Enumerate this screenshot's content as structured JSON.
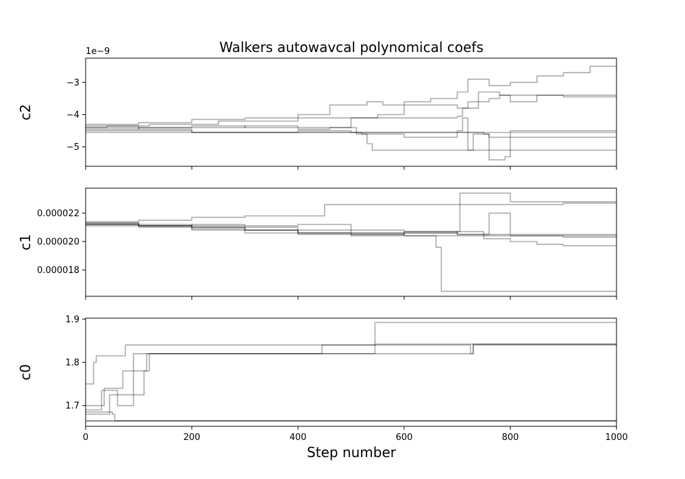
{
  "title": "Walkers autowavcal polynomical coefs",
  "xlabel": "Step number",
  "line_color": "#000000",
  "line_opacity": 0.33,
  "chart_data": [
    {
      "type": "line",
      "panel": "c2",
      "ylabel": "c2",
      "offset_label": "1e−9",
      "xlim": [
        0,
        1000
      ],
      "ylim": [
        -5.6e-09,
        -2.25e-09
      ],
      "xticks": [
        0,
        200,
        400,
        600,
        800,
        1000
      ],
      "yticks": [
        -5e-09,
        -4e-09,
        -3e-09
      ],
      "ytick_labels": [
        "−5",
        "−4",
        "−3"
      ],
      "show_xtick_labels": false,
      "grid": false,
      "series": [
        {
          "x": [
            0,
            40,
            120,
            250,
            400,
            450,
            460,
            520,
            530,
            560,
            600,
            650,
            700,
            720,
            760,
            800,
            850,
            900,
            950,
            1000
          ],
          "y": [
            -4.4e-09,
            -4.35e-09,
            -4.3e-09,
            -4.2e-09,
            -4e-09,
            -4e-09,
            -3.7e-09,
            -3.7e-09,
            -3.6e-09,
            -3.7e-09,
            -3.6e-09,
            -3.5e-09,
            -3.3e-09,
            -2.9e-09,
            -3.1e-09,
            -3e-09,
            -2.8e-09,
            -2.7e-09,
            -2.5e-09,
            -2.65e-09
          ]
        },
        {
          "x": [
            0,
            100,
            200,
            300,
            400,
            500,
            600,
            700,
            710,
            740,
            780,
            800,
            850,
            900,
            1000
          ],
          "y": [
            -4.3e-09,
            -4.25e-09,
            -4.15e-09,
            -4.1e-09,
            -4.1e-09,
            -4.1e-09,
            -4.1e-09,
            -4.05e-09,
            -3.8e-09,
            -3.3e-09,
            -3.4e-09,
            -3.6e-09,
            -3.4e-09,
            -3.45e-09,
            -3.5e-09
          ]
        },
        {
          "x": [
            0,
            100,
            200,
            300,
            400,
            460,
            500,
            550,
            600,
            650,
            700,
            720,
            740,
            760,
            780,
            800,
            900,
            1000
          ],
          "y": [
            -4.45e-09,
            -4.4e-09,
            -4.35e-09,
            -4.4e-09,
            -4.45e-09,
            -4.4e-09,
            -4.1e-09,
            -4e-09,
            -3.7e-09,
            -3.7e-09,
            -3.8e-09,
            -3.6e-09,
            -3.6e-09,
            -3.5e-09,
            -3.4e-09,
            -3.4e-09,
            -3.4e-09,
            -3.4e-09
          ]
        },
        {
          "x": [
            0,
            100,
            200,
            300,
            400,
            500,
            510,
            540,
            600,
            700,
            710,
            720,
            730,
            760,
            800,
            1000
          ],
          "y": [
            -4.35e-09,
            -4.4e-09,
            -4.4e-09,
            -4.35e-09,
            -4.4e-09,
            -4.4e-09,
            -4.6e-09,
            -4.6e-09,
            -4.7e-09,
            -4.5e-09,
            -4.1e-09,
            -5.1e-09,
            -4.6e-09,
            -4.7e-09,
            -4.7e-09,
            -4.7e-09
          ]
        },
        {
          "x": [
            0,
            100,
            200,
            400,
            500,
            600,
            700,
            750,
            760,
            790,
            800,
            850,
            1000
          ],
          "y": [
            -4.4e-09,
            -4.45e-09,
            -4.55e-09,
            -4.5e-09,
            -4.55e-09,
            -4.55e-09,
            -4.55e-09,
            -4.6e-09,
            -5.4e-09,
            -5.3e-09,
            -4.5e-09,
            -4.5e-09,
            -4.5e-09
          ]
        },
        {
          "x": [
            0,
            200,
            400,
            500,
            520,
            530,
            540,
            600,
            650,
            700,
            1000
          ],
          "y": [
            -4.5e-09,
            -4.55e-09,
            -4.55e-09,
            -4.55e-09,
            -4.6e-09,
            -4.9e-09,
            -5.1e-09,
            -5.1e-09,
            -5.1e-09,
            -5.1e-09,
            -5.1e-09
          ]
        },
        {
          "x": [
            0,
            100,
            200,
            300,
            400,
            500,
            600,
            700,
            800,
            900,
            1000
          ],
          "y": [
            -4.55e-09,
            -4.55e-09,
            -4.55e-09,
            -4.55e-09,
            -4.55e-09,
            -4.55e-09,
            -4.55e-09,
            -4.55e-09,
            -4.55e-09,
            -4.55e-09,
            -4.55e-09
          ]
        }
      ]
    },
    {
      "type": "line",
      "panel": "c1",
      "ylabel": "c1",
      "xlim": [
        0,
        1000
      ],
      "ylim": [
        1.615e-05,
        2.375e-05
      ],
      "xticks": [
        0,
        200,
        400,
        600,
        800,
        1000
      ],
      "yticks": [
        1.8e-05,
        2e-05,
        2.2e-05
      ],
      "ytick_labels": [
        "0.000018",
        "0.000020",
        "0.000022"
      ],
      "show_xtick_labels": false,
      "grid": false,
      "series": [
        {
          "x": [
            0,
            100,
            200,
            300,
            400,
            450,
            500,
            600,
            700,
            800,
            900,
            1000
          ],
          "y": [
            2.14e-05,
            2.15e-05,
            2.17e-05,
            2.18e-05,
            2.18e-05,
            2.26e-05,
            2.26e-05,
            2.26e-05,
            2.26e-05,
            2.26e-05,
            2.27e-05,
            2.27e-05
          ]
        },
        {
          "x": [
            0,
            100,
            200,
            400,
            600,
            700,
            705,
            740,
            800,
            900,
            1000
          ],
          "y": [
            2.12e-05,
            2.11e-05,
            2.1e-05,
            2.08e-05,
            2.07e-05,
            2.07e-05,
            2.34e-05,
            2.34e-05,
            2.28e-05,
            2.28e-05,
            2.28e-05
          ]
        },
        {
          "x": [
            0,
            100,
            200,
            300,
            400,
            500,
            600,
            700,
            760,
            780,
            800,
            900,
            1000
          ],
          "y": [
            2.13e-05,
            2.12e-05,
            2.1e-05,
            2.08e-05,
            2.06e-05,
            2.06e-05,
            2.06e-05,
            2.05e-05,
            2.2e-05,
            2.2e-05,
            2.05e-05,
            2.05e-05,
            2.06e-05
          ]
        },
        {
          "x": [
            0,
            100,
            200,
            300,
            400,
            500,
            600,
            700,
            800,
            900,
            1000
          ],
          "y": [
            2.12e-05,
            2.11e-05,
            2.11e-05,
            2.08e-05,
            2.06e-05,
            2.05e-05,
            2.07e-05,
            2.05e-05,
            2.04e-05,
            2.03e-05,
            2.04e-05
          ]
        },
        {
          "x": [
            0,
            100,
            200,
            300,
            400,
            500,
            600,
            700,
            800,
            900,
            1000
          ],
          "y": [
            2.11e-05,
            2.1e-05,
            2.08e-05,
            2.06e-05,
            2.05e-05,
            2.04e-05,
            2.04e-05,
            2.04e-05,
            2.04e-05,
            2.04e-05,
            2.04e-05
          ]
        },
        {
          "x": [
            0,
            100,
            200,
            300,
            400,
            500,
            600,
            660,
            670,
            700,
            800,
            1000
          ],
          "y": [
            2.12e-05,
            2.11e-05,
            2.12e-05,
            2.11e-05,
            2.12e-05,
            2.06e-05,
            2.04e-05,
            1.96e-05,
            1.65e-05,
            1.65e-05,
            1.65e-05,
            1.65e-05
          ]
        },
        {
          "x": [
            0,
            100,
            200,
            300,
            400,
            500,
            600,
            700,
            750,
            800,
            850,
            900,
            950,
            1000
          ],
          "y": [
            2.13e-05,
            2.11e-05,
            2.09e-05,
            2.08e-05,
            2.06e-05,
            2.05e-05,
            2.06e-05,
            2.07e-05,
            2.02e-05,
            2e-05,
            1.98e-05,
            1.97e-05,
            1.97e-05,
            1.96e-05
          ]
        }
      ]
    },
    {
      "type": "line",
      "panel": "c0",
      "ylabel": "c0",
      "xlim": [
        0,
        1000
      ],
      "ylim": [
        1.652,
        1.902
      ],
      "xticks": [
        0,
        200,
        400,
        600,
        800,
        1000
      ],
      "xtick_labels": [
        "0",
        "200",
        "400",
        "600",
        "800",
        "1000"
      ],
      "yticks": [
        1.7,
        1.8,
        1.9
      ],
      "ytick_labels": [
        "1.7",
        "1.8",
        "1.9"
      ],
      "show_xtick_labels": true,
      "grid": false,
      "series": [
        {
          "x": [
            0,
            5,
            15,
            20,
            50,
            70,
            75,
            200,
            400,
            440,
            445,
            540,
            545,
            700,
            1000
          ],
          "y": [
            1.75,
            1.75,
            1.8,
            1.815,
            1.815,
            1.815,
            1.84,
            1.84,
            1.84,
            1.84,
            1.84,
            1.84,
            1.892,
            1.892,
            1.892
          ]
        },
        {
          "x": [
            0,
            30,
            35,
            60,
            70,
            120,
            400,
            440,
            445,
            700,
            725,
            730,
            1000
          ],
          "y": [
            1.7,
            1.7,
            1.74,
            1.74,
            1.78,
            1.82,
            1.82,
            1.82,
            1.84,
            1.84,
            1.82,
            1.84,
            1.84
          ]
        },
        {
          "x": [
            0,
            25,
            30,
            55,
            60,
            85,
            90,
            120,
            200,
            540,
            545,
            1000
          ],
          "y": [
            1.69,
            1.69,
            1.735,
            1.735,
            1.7,
            1.7,
            1.82,
            1.82,
            1.82,
            1.82,
            1.842,
            1.842
          ]
        },
        {
          "x": [
            0,
            40,
            45,
            100,
            110,
            115,
            200,
            700,
            730,
            1000
          ],
          "y": [
            1.68,
            1.68,
            1.725,
            1.725,
            1.78,
            1.82,
            1.82,
            1.82,
            1.842,
            1.842
          ]
        },
        {
          "x": [
            0,
            50,
            55,
            1000
          ],
          "y": [
            1.685,
            1.68,
            1.665,
            1.665
          ]
        },
        {
          "x": [
            0,
            1000
          ],
          "y": [
            1.665,
            1.665
          ]
        },
        {
          "x": [
            0,
            1000
          ],
          "y": [
            1.664,
            1.664
          ]
        }
      ]
    }
  ]
}
